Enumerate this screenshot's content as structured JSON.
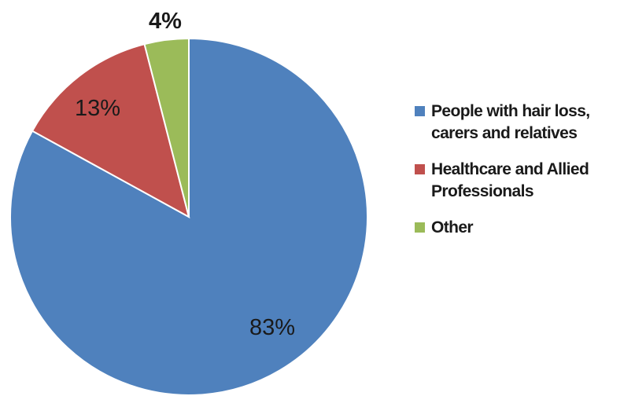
{
  "chart_data": {
    "type": "pie",
    "title": "",
    "start_angle_deg": 0,
    "direction": "clockwise",
    "legend_position": "right",
    "slices": [
      {
        "label": "People with hair loss,\ncarers and relatives",
        "value": 83,
        "display": "83%",
        "color": "#4F81BD"
      },
      {
        "label": "Healthcare and Allied\nProfessionals",
        "value": 13,
        "display": "13%",
        "color": "#C0504D"
      },
      {
        "label": "Other",
        "value": 4,
        "display": "4%",
        "color": "#9BBB59"
      }
    ]
  }
}
